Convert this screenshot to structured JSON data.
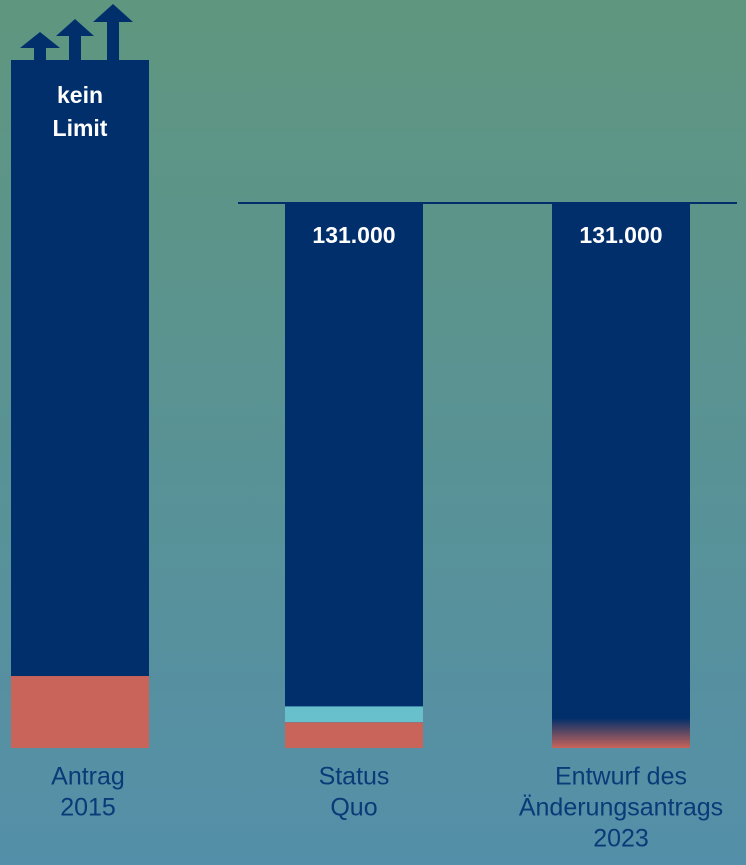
{
  "chart_data": {
    "type": "bar",
    "categories": [
      [
        "Antrag",
        "2015"
      ],
      [
        "Status",
        "Quo"
      ],
      [
        "Entwurf des",
        "Änderungsantrags",
        "2023"
      ]
    ],
    "values": [
      null,
      131000,
      131000
    ],
    "value_labels": [
      [
        "kein",
        "Limit"
      ],
      "131.000",
      "131.000"
    ],
    "color": "#002f6c",
    "ylim": [
      0,
      131000
    ],
    "series": [
      {
        "color": "#c8645a",
        "values": [
          17300,
          6200,
          null
        ]
      },
      {
        "color": "#68c0cc",
        "values": [
          null,
          3800,
          null
        ]
      },
      {
        "color": "#c8645a",
        "style": "fade",
        "values": [
          null,
          null,
          7200
        ]
      }
    ]
  }
}
